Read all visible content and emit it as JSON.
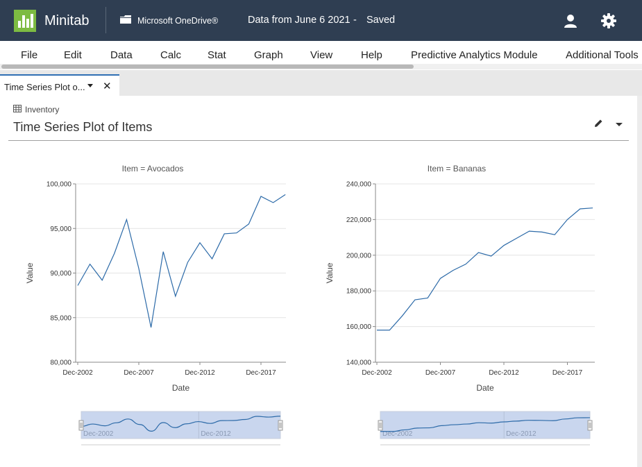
{
  "header": {
    "app_name": "Minitab",
    "storage_label": "Microsoft OneDrive®",
    "document_title": "Data from June 6 2021",
    "separator": "-",
    "save_status": "Saved"
  },
  "menu": {
    "items": [
      "File",
      "Edit",
      "Data",
      "Calc",
      "Stat",
      "Graph",
      "View",
      "Help",
      "Predictive Analytics Module",
      "Additional Tools"
    ]
  },
  "tab": {
    "label": "Time Series Plot o..."
  },
  "output": {
    "worksheet": "Inventory",
    "title": "Time Series Plot of Items"
  },
  "colors": {
    "header_bg": "#2f3e52",
    "logo": "#7dbb42",
    "series": "#2c6aa8",
    "tab_accent": "#2f6fb3"
  },
  "chart_data": [
    {
      "type": "line",
      "title": "Item = Avocados",
      "xlabel": "Date",
      "ylabel": "Value",
      "x_ticks": [
        "Dec-2002",
        "Dec-2007",
        "Dec-2012",
        "Dec-2017"
      ],
      "y_ticks": [
        "80,000",
        "85,000",
        "90,000",
        "95,000",
        "100,000"
      ],
      "ylim": [
        80000,
        100000
      ],
      "x": [
        2002,
        2003,
        2004,
        2005,
        2006,
        2007,
        2008,
        2009,
        2010,
        2011,
        2012,
        2013,
        2014,
        2015,
        2016,
        2017,
        2018,
        2019
      ],
      "values": [
        88600,
        91000,
        89200,
        92200,
        96000,
        90500,
        83900,
        92400,
        87400,
        91200,
        93400,
        91600,
        94400,
        94500,
        95500,
        98600,
        97900,
        98800
      ],
      "navigator_labels": [
        "Dec-2002",
        "Dec-2012"
      ]
    },
    {
      "type": "line",
      "title": "Item = Bananas",
      "xlabel": "Date",
      "ylabel": "Value",
      "x_ticks": [
        "Dec-2002",
        "Dec-2007",
        "Dec-2012",
        "Dec-2017"
      ],
      "y_ticks": [
        "140,000",
        "160,000",
        "180,000",
        "200,000",
        "220,000",
        "240,000"
      ],
      "ylim": [
        140000,
        240000
      ],
      "x": [
        2002,
        2003,
        2004,
        2005,
        2006,
        2007,
        2008,
        2009,
        2010,
        2011,
        2012,
        2013,
        2014,
        2015,
        2016,
        2017,
        2018,
        2019
      ],
      "values": [
        158000,
        158000,
        166000,
        175000,
        176000,
        187000,
        191500,
        195000,
        201500,
        199500,
        205500,
        209500,
        213500,
        213000,
        211500,
        220000,
        226000,
        226500
      ],
      "navigator_labels": [
        "Dec-2002",
        "Dec-2012"
      ]
    }
  ]
}
